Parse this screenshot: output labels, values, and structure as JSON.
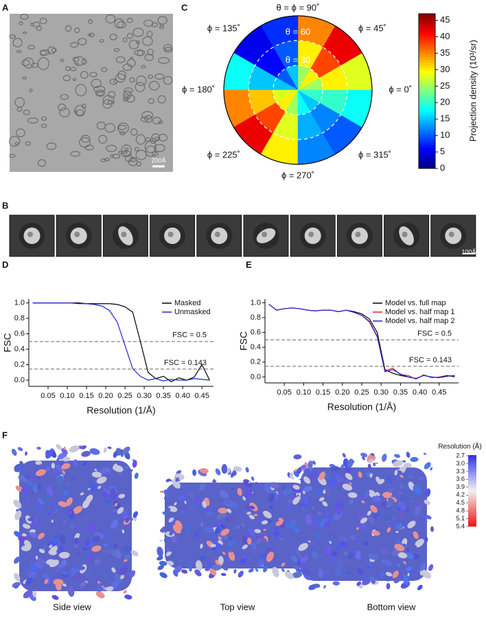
{
  "panel_labels": [
    "A",
    "B",
    "C",
    "D",
    "E",
    "F"
  ],
  "micrograph": {
    "scale_label": "200Å"
  },
  "class_averages": {
    "scale_label": "100Å"
  },
  "polar": {
    "top_label": "θ = ϕ = 90˚",
    "phi_labels": [
      "ϕ = 0˚",
      "ϕ = 45˚",
      "ϕ = 135˚",
      "ϕ = 180˚",
      "ϕ = 225˚",
      "ϕ = 270˚",
      "ϕ = 315˚"
    ],
    "theta_labels": [
      "θ = 60",
      "θ = 30"
    ],
    "phi_bins": [
      0,
      30,
      60,
      90,
      120,
      150,
      180,
      210,
      240,
      270,
      300,
      330,
      360
    ],
    "theta_bins": [
      0,
      30,
      60,
      90
    ],
    "values": [
      [
        25,
        30,
        25,
        15,
        10,
        15,
        28,
        30,
        25,
        18,
        15,
        20
      ],
      [
        30,
        38,
        30,
        10,
        6,
        15,
        32,
        38,
        28,
        14,
        12,
        20
      ],
      [
        28,
        42,
        35,
        8,
        5,
        18,
        35,
        42,
        30,
        12,
        10,
        18
      ]
    ],
    "colorbar_label": "Projection density (10³/sr)",
    "clim": [
      0,
      47
    ],
    "cticks": [
      0,
      5,
      10,
      15,
      20,
      25,
      30,
      35,
      40,
      45
    ]
  },
  "chart_data": [
    {
      "type": "line",
      "xlabel": "Resolution (1/Å)",
      "ylabel": "FSC",
      "x": [
        0.01,
        0.03,
        0.05,
        0.07,
        0.09,
        0.11,
        0.13,
        0.15,
        0.17,
        0.19,
        0.21,
        0.23,
        0.25,
        0.27,
        0.29,
        0.31,
        0.33,
        0.35,
        0.37,
        0.39,
        0.41,
        0.43,
        0.45,
        0.47
      ],
      "series": [
        {
          "name": "Masked",
          "color": "#000000",
          "values": [
            1,
            1,
            1,
            1,
            1,
            1,
            1,
            0.99,
            0.99,
            0.99,
            0.99,
            0.98,
            0.95,
            0.88,
            0.5,
            0.1,
            0.02,
            0.05,
            -0.02,
            0.03,
            0.0,
            0.04,
            0.2,
            0.0
          ]
        },
        {
          "name": "Unmasked",
          "color": "#2222cc",
          "values": [
            1,
            1,
            1,
            1,
            1,
            1,
            0.99,
            0.99,
            0.98,
            0.96,
            0.9,
            0.75,
            0.45,
            0.15,
            0.05,
            0.0,
            0.02,
            -0.01,
            0.01,
            0.0,
            0.0,
            0.02,
            0.01,
            0.0
          ]
        }
      ],
      "reference_lines": [
        {
          "value": 0.5,
          "label": "FSC = 0.5"
        },
        {
          "value": 0.143,
          "label": "FSC = 0.143"
        }
      ],
      "xlim": [
        0,
        0.48
      ],
      "xticks": [
        0.05,
        {
          "value": 0.1,
          "label": "0.10"
        },
        0.15,
        {
          "value": 0.2,
          "label": "0.20"
        },
        0.25,
        {
          "value": 0.3,
          "label": "0.30"
        },
        0.35,
        {
          "value": 0.4,
          "label": "0.40"
        },
        0.45
      ],
      "ylim": [
        -0.08,
        1.05
      ],
      "yticks": [
        {
          "value": 0,
          "label": "0.0"
        },
        0.2,
        0.4,
        0.6,
        0.8,
        {
          "value": 1,
          "label": "1.0"
        }
      ],
      "legend": "top-right"
    },
    {
      "type": "line",
      "xlabel": "Resolution (1/Å)",
      "ylabel": "FSC",
      "x": [
        0.01,
        0.03,
        0.05,
        0.07,
        0.09,
        0.11,
        0.13,
        0.15,
        0.17,
        0.19,
        0.21,
        0.23,
        0.25,
        0.27,
        0.29,
        0.31,
        0.33,
        0.35,
        0.37,
        0.39,
        0.41,
        0.43,
        0.45,
        0.47,
        0.49
      ],
      "series": [
        {
          "name": "Model vs. full map",
          "color": "#000000",
          "values": [
            0.98,
            0.9,
            0.92,
            0.93,
            0.92,
            0.9,
            0.89,
            0.9,
            0.9,
            0.88,
            0.9,
            0.88,
            0.85,
            0.78,
            0.6,
            0.1,
            0.05,
            0.02,
            0.0,
            -0.02,
            0.02,
            0.0,
            -0.01,
            0.01,
            0.02
          ]
        },
        {
          "name": "Model vs. half map 1",
          "color": "#dd2222",
          "values": [
            0.98,
            0.9,
            0.92,
            0.93,
            0.92,
            0.9,
            0.89,
            0.9,
            0.9,
            0.88,
            0.9,
            0.87,
            0.83,
            0.75,
            0.55,
            0.08,
            0.12,
            0.03,
            0.02,
            -0.03,
            0.03,
            -0.01,
            0.0,
            0.02,
            0.01
          ]
        },
        {
          "name": "Model vs. half map 2",
          "color": "#2222dd",
          "values": [
            0.98,
            0.9,
            0.92,
            0.93,
            0.92,
            0.9,
            0.89,
            0.9,
            0.9,
            0.88,
            0.9,
            0.87,
            0.83,
            0.74,
            0.54,
            0.07,
            0.1,
            0.04,
            0.0,
            -0.02,
            0.02,
            0.0,
            -0.01,
            0.02,
            0.0
          ]
        }
      ],
      "reference_lines": [
        {
          "value": 0.5,
          "label": "FSC = 0.5"
        },
        {
          "value": 0.143,
          "label": "FSC = 0.143"
        }
      ],
      "xlim": [
        0,
        0.5
      ],
      "xticks": [
        0.05,
        {
          "value": 0.1,
          "label": "0.10"
        },
        0.15,
        {
          "value": 0.2,
          "label": "0.20"
        },
        0.25,
        {
          "value": 0.3,
          "label": "0.30"
        },
        0.35,
        {
          "value": 0.4,
          "label": "0.40"
        },
        0.45
      ],
      "ylim": [
        -0.08,
        1.05
      ],
      "yticks": [
        {
          "value": 0,
          "label": "0.0"
        },
        0.2,
        0.4,
        0.6,
        0.8,
        {
          "value": 1,
          "label": "1.0"
        }
      ],
      "legend": "top-right"
    }
  ],
  "views": {
    "labels": [
      "Side view",
      "Top view",
      "Bottom view"
    ],
    "colorbar_label": "Resolution (Å)",
    "clim": [
      2.7,
      5.4
    ],
    "cticks": [
      2.7,
      {
        "value": 3.0,
        "label": "3.0"
      },
      3.3,
      3.6,
      3.9,
      4.2,
      4.5,
      4.8,
      5.1,
      5.4
    ]
  }
}
